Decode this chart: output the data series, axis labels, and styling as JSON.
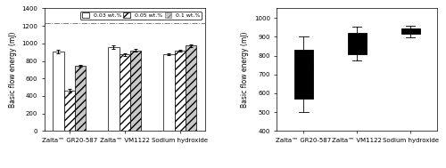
{
  "left_chart": {
    "ylabel": "Basic flow energy (mJ)",
    "ylim": [
      0,
      1400
    ],
    "yticks": [
      0,
      200,
      400,
      600,
      800,
      1000,
      1200,
      1400
    ],
    "hline_y": 1230,
    "categories": [
      "Zalta™ GR20-587",
      "Zalta™ VM1122",
      "Sodium hydroxide"
    ],
    "groups": [
      "0.03 wt.%",
      "0.05 wt.%",
      "0.1 wt.%"
    ],
    "bar_width": 0.2,
    "values_by_cat": [
      [
        905,
        460,
        745
      ],
      [
        960,
        875,
        920
      ],
      [
        880,
        920,
        975
      ]
    ],
    "errors_by_cat": [
      [
        18,
        20,
        15
      ],
      [
        18,
        15,
        15
      ],
      [
        12,
        12,
        18
      ]
    ],
    "bar_facecolors": [
      "white",
      "white",
      "#c8c8c8"
    ],
    "hatch_patterns": [
      "",
      "////",
      "////"
    ],
    "hatch_colors": [
      "black",
      "black",
      "#888888"
    ]
  },
  "right_chart": {
    "ylabel": "Basic flow energy (mJ)",
    "ylim": [
      400,
      1050
    ],
    "yticks": [
      400,
      500,
      600,
      700,
      800,
      900,
      1000
    ],
    "categories": [
      "Zalta™ GR20-587",
      "Zalta™ VM1122",
      "Sodium hydroxide"
    ],
    "box_facecolor": "#b0b0b0",
    "box_data": [
      {
        "whislo": 500,
        "q1": 570,
        "med": 748,
        "q3": 830,
        "whishi": 900
      },
      {
        "whislo": 775,
        "q1": 808,
        "med": 878,
        "q3": 920,
        "whishi": 955
      },
      {
        "whislo": 898,
        "q1": 915,
        "med": 930,
        "q3": 945,
        "whishi": 960
      }
    ]
  },
  "fig_width": 5.0,
  "fig_height": 1.89,
  "dpi": 100
}
